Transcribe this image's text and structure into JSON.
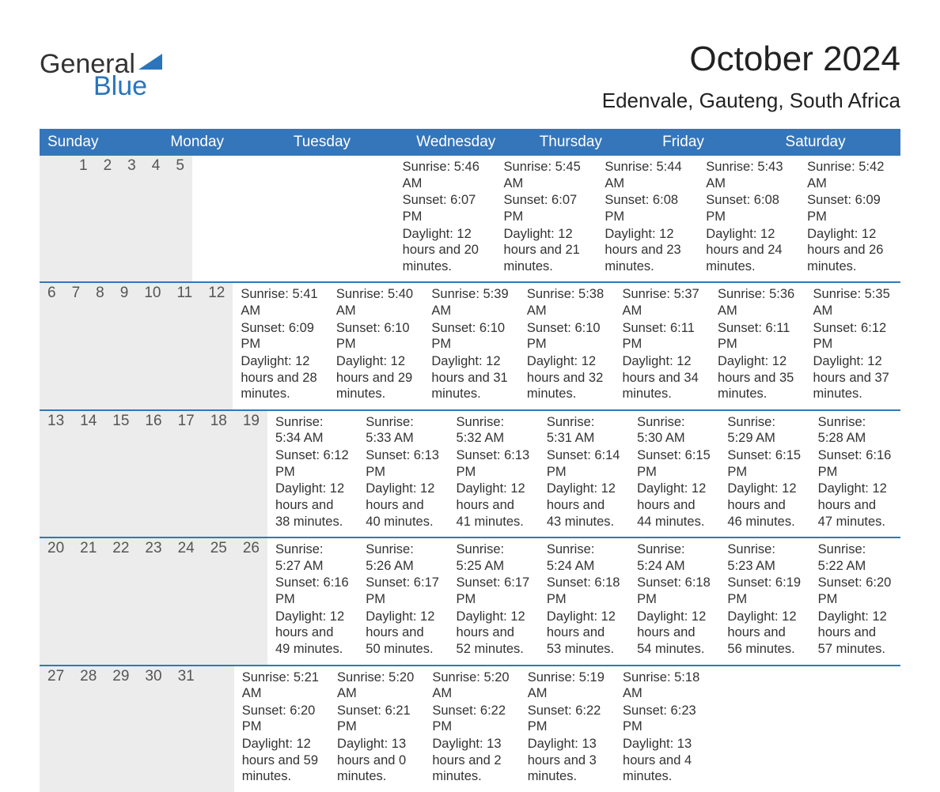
{
  "logo": {
    "word1": "General",
    "word2": "Blue",
    "triangle_color": "#2a75bb"
  },
  "title": "October 2024",
  "location": "Edenvale, Gauteng, South Africa",
  "colors": {
    "header_bg": "#3576ba",
    "header_text": "#ffffff",
    "daynum_bg": "#ececec",
    "week_divider": "#3576ba",
    "text": "#333333"
  },
  "days_of_week": [
    "Sunday",
    "Monday",
    "Tuesday",
    "Wednesday",
    "Thursday",
    "Friday",
    "Saturday"
  ],
  "weeks": [
    [
      {
        "num": "",
        "sunrise": "",
        "sunset": "",
        "daylight": ""
      },
      {
        "num": "",
        "sunrise": "",
        "sunset": "",
        "daylight": ""
      },
      {
        "num": "1",
        "sunrise": "Sunrise: 5:46 AM",
        "sunset": "Sunset: 6:07 PM",
        "daylight": "Daylight: 12 hours and 20 minutes."
      },
      {
        "num": "2",
        "sunrise": "Sunrise: 5:45 AM",
        "sunset": "Sunset: 6:07 PM",
        "daylight": "Daylight: 12 hours and 21 minutes."
      },
      {
        "num": "3",
        "sunrise": "Sunrise: 5:44 AM",
        "sunset": "Sunset: 6:08 PM",
        "daylight": "Daylight: 12 hours and 23 minutes."
      },
      {
        "num": "4",
        "sunrise": "Sunrise: 5:43 AM",
        "sunset": "Sunset: 6:08 PM",
        "daylight": "Daylight: 12 hours and 24 minutes."
      },
      {
        "num": "5",
        "sunrise": "Sunrise: 5:42 AM",
        "sunset": "Sunset: 6:09 PM",
        "daylight": "Daylight: 12 hours and 26 minutes."
      }
    ],
    [
      {
        "num": "6",
        "sunrise": "Sunrise: 5:41 AM",
        "sunset": "Sunset: 6:09 PM",
        "daylight": "Daylight: 12 hours and 28 minutes."
      },
      {
        "num": "7",
        "sunrise": "Sunrise: 5:40 AM",
        "sunset": "Sunset: 6:10 PM",
        "daylight": "Daylight: 12 hours and 29 minutes."
      },
      {
        "num": "8",
        "sunrise": "Sunrise: 5:39 AM",
        "sunset": "Sunset: 6:10 PM",
        "daylight": "Daylight: 12 hours and 31 minutes."
      },
      {
        "num": "9",
        "sunrise": "Sunrise: 5:38 AM",
        "sunset": "Sunset: 6:10 PM",
        "daylight": "Daylight: 12 hours and 32 minutes."
      },
      {
        "num": "10",
        "sunrise": "Sunrise: 5:37 AM",
        "sunset": "Sunset: 6:11 PM",
        "daylight": "Daylight: 12 hours and 34 minutes."
      },
      {
        "num": "11",
        "sunrise": "Sunrise: 5:36 AM",
        "sunset": "Sunset: 6:11 PM",
        "daylight": "Daylight: 12 hours and 35 minutes."
      },
      {
        "num": "12",
        "sunrise": "Sunrise: 5:35 AM",
        "sunset": "Sunset: 6:12 PM",
        "daylight": "Daylight: 12 hours and 37 minutes."
      }
    ],
    [
      {
        "num": "13",
        "sunrise": "Sunrise: 5:34 AM",
        "sunset": "Sunset: 6:12 PM",
        "daylight": "Daylight: 12 hours and 38 minutes."
      },
      {
        "num": "14",
        "sunrise": "Sunrise: 5:33 AM",
        "sunset": "Sunset: 6:13 PM",
        "daylight": "Daylight: 12 hours and 40 minutes."
      },
      {
        "num": "15",
        "sunrise": "Sunrise: 5:32 AM",
        "sunset": "Sunset: 6:13 PM",
        "daylight": "Daylight: 12 hours and 41 minutes."
      },
      {
        "num": "16",
        "sunrise": "Sunrise: 5:31 AM",
        "sunset": "Sunset: 6:14 PM",
        "daylight": "Daylight: 12 hours and 43 minutes."
      },
      {
        "num": "17",
        "sunrise": "Sunrise: 5:30 AM",
        "sunset": "Sunset: 6:15 PM",
        "daylight": "Daylight: 12 hours and 44 minutes."
      },
      {
        "num": "18",
        "sunrise": "Sunrise: 5:29 AM",
        "sunset": "Sunset: 6:15 PM",
        "daylight": "Daylight: 12 hours and 46 minutes."
      },
      {
        "num": "19",
        "sunrise": "Sunrise: 5:28 AM",
        "sunset": "Sunset: 6:16 PM",
        "daylight": "Daylight: 12 hours and 47 minutes."
      }
    ],
    [
      {
        "num": "20",
        "sunrise": "Sunrise: 5:27 AM",
        "sunset": "Sunset: 6:16 PM",
        "daylight": "Daylight: 12 hours and 49 minutes."
      },
      {
        "num": "21",
        "sunrise": "Sunrise: 5:26 AM",
        "sunset": "Sunset: 6:17 PM",
        "daylight": "Daylight: 12 hours and 50 minutes."
      },
      {
        "num": "22",
        "sunrise": "Sunrise: 5:25 AM",
        "sunset": "Sunset: 6:17 PM",
        "daylight": "Daylight: 12 hours and 52 minutes."
      },
      {
        "num": "23",
        "sunrise": "Sunrise: 5:24 AM",
        "sunset": "Sunset: 6:18 PM",
        "daylight": "Daylight: 12 hours and 53 minutes."
      },
      {
        "num": "24",
        "sunrise": "Sunrise: 5:24 AM",
        "sunset": "Sunset: 6:18 PM",
        "daylight": "Daylight: 12 hours and 54 minutes."
      },
      {
        "num": "25",
        "sunrise": "Sunrise: 5:23 AM",
        "sunset": "Sunset: 6:19 PM",
        "daylight": "Daylight: 12 hours and 56 minutes."
      },
      {
        "num": "26",
        "sunrise": "Sunrise: 5:22 AM",
        "sunset": "Sunset: 6:20 PM",
        "daylight": "Daylight: 12 hours and 57 minutes."
      }
    ],
    [
      {
        "num": "27",
        "sunrise": "Sunrise: 5:21 AM",
        "sunset": "Sunset: 6:20 PM",
        "daylight": "Daylight: 12 hours and 59 minutes."
      },
      {
        "num": "28",
        "sunrise": "Sunrise: 5:20 AM",
        "sunset": "Sunset: 6:21 PM",
        "daylight": "Daylight: 13 hours and 0 minutes."
      },
      {
        "num": "29",
        "sunrise": "Sunrise: 5:20 AM",
        "sunset": "Sunset: 6:22 PM",
        "daylight": "Daylight: 13 hours and 2 minutes."
      },
      {
        "num": "30",
        "sunrise": "Sunrise: 5:19 AM",
        "sunset": "Sunset: 6:22 PM",
        "daylight": "Daylight: 13 hours and 3 minutes."
      },
      {
        "num": "31",
        "sunrise": "Sunrise: 5:18 AM",
        "sunset": "Sunset: 6:23 PM",
        "daylight": "Daylight: 13 hours and 4 minutes."
      },
      {
        "num": "",
        "sunrise": "",
        "sunset": "",
        "daylight": ""
      },
      {
        "num": "",
        "sunrise": "",
        "sunset": "",
        "daylight": ""
      }
    ]
  ]
}
